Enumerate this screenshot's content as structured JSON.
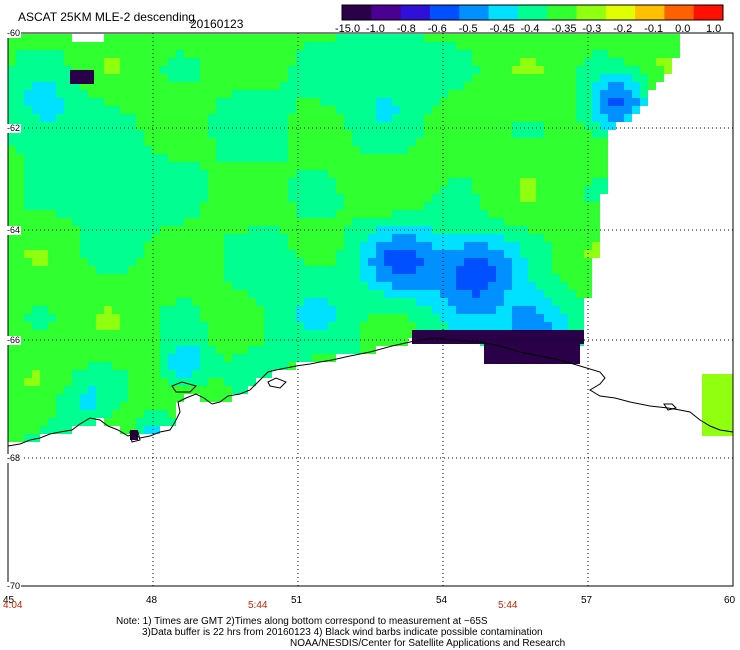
{
  "header": {
    "title": "ASCAT 25KM MLE-2 descending",
    "date": "20160123"
  },
  "colorbar": {
    "tick_labels": [
      "-15.0",
      "-1.0",
      "-0.8",
      "-0.6",
      "-0.5",
      "-0.45",
      "-0.4",
      "-0.35",
      "-0.3",
      "-0.2",
      "-0.1",
      "0.0",
      "1.0"
    ],
    "colors": [
      "#2a0048",
      "#4a0090",
      "#3010d8",
      "#0050ff",
      "#0090ff",
      "#00e0ff",
      "#00ff90",
      "#30ff30",
      "#90ff10",
      "#e0ff00",
      "#ffc000",
      "#ff6000",
      "#ff1000"
    ]
  },
  "axes": {
    "lat_labels": [
      "-60",
      "-62",
      "-64",
      "-66",
      "-68",
      "-70"
    ],
    "lon_labels": [
      "45",
      "48",
      "51",
      "54",
      "57",
      "60"
    ],
    "time_labels": [
      "4:04",
      "5:44",
      "5:44"
    ]
  },
  "notes": {
    "line1": "Note: 1) Times are GMT 2)Times along bottom correspond to measurement at ~65S",
    "line2": "3)Data buffer is 22 hrs from 20160123 4) Black wind barbs indicate possible contamination",
    "line3": "NOAA/NESDIS/Center for Satellite Applications and Research"
  },
  "colors": {
    "land": "#ffffff",
    "grid": "#000000",
    "time_label": "#cc2200"
  },
  "map_data": {
    "lon_range": [
      45,
      60
    ],
    "lat_range": [
      -70,
      -60
    ],
    "field_levels": [
      "-15.0",
      "-1.0",
      "-0.8",
      "-0.6",
      "-0.5",
      "-0.45",
      "-0.4",
      "-0.35",
      "-0.3",
      "-0.2",
      "-0.1",
      "0.0",
      "1.0"
    ]
  }
}
